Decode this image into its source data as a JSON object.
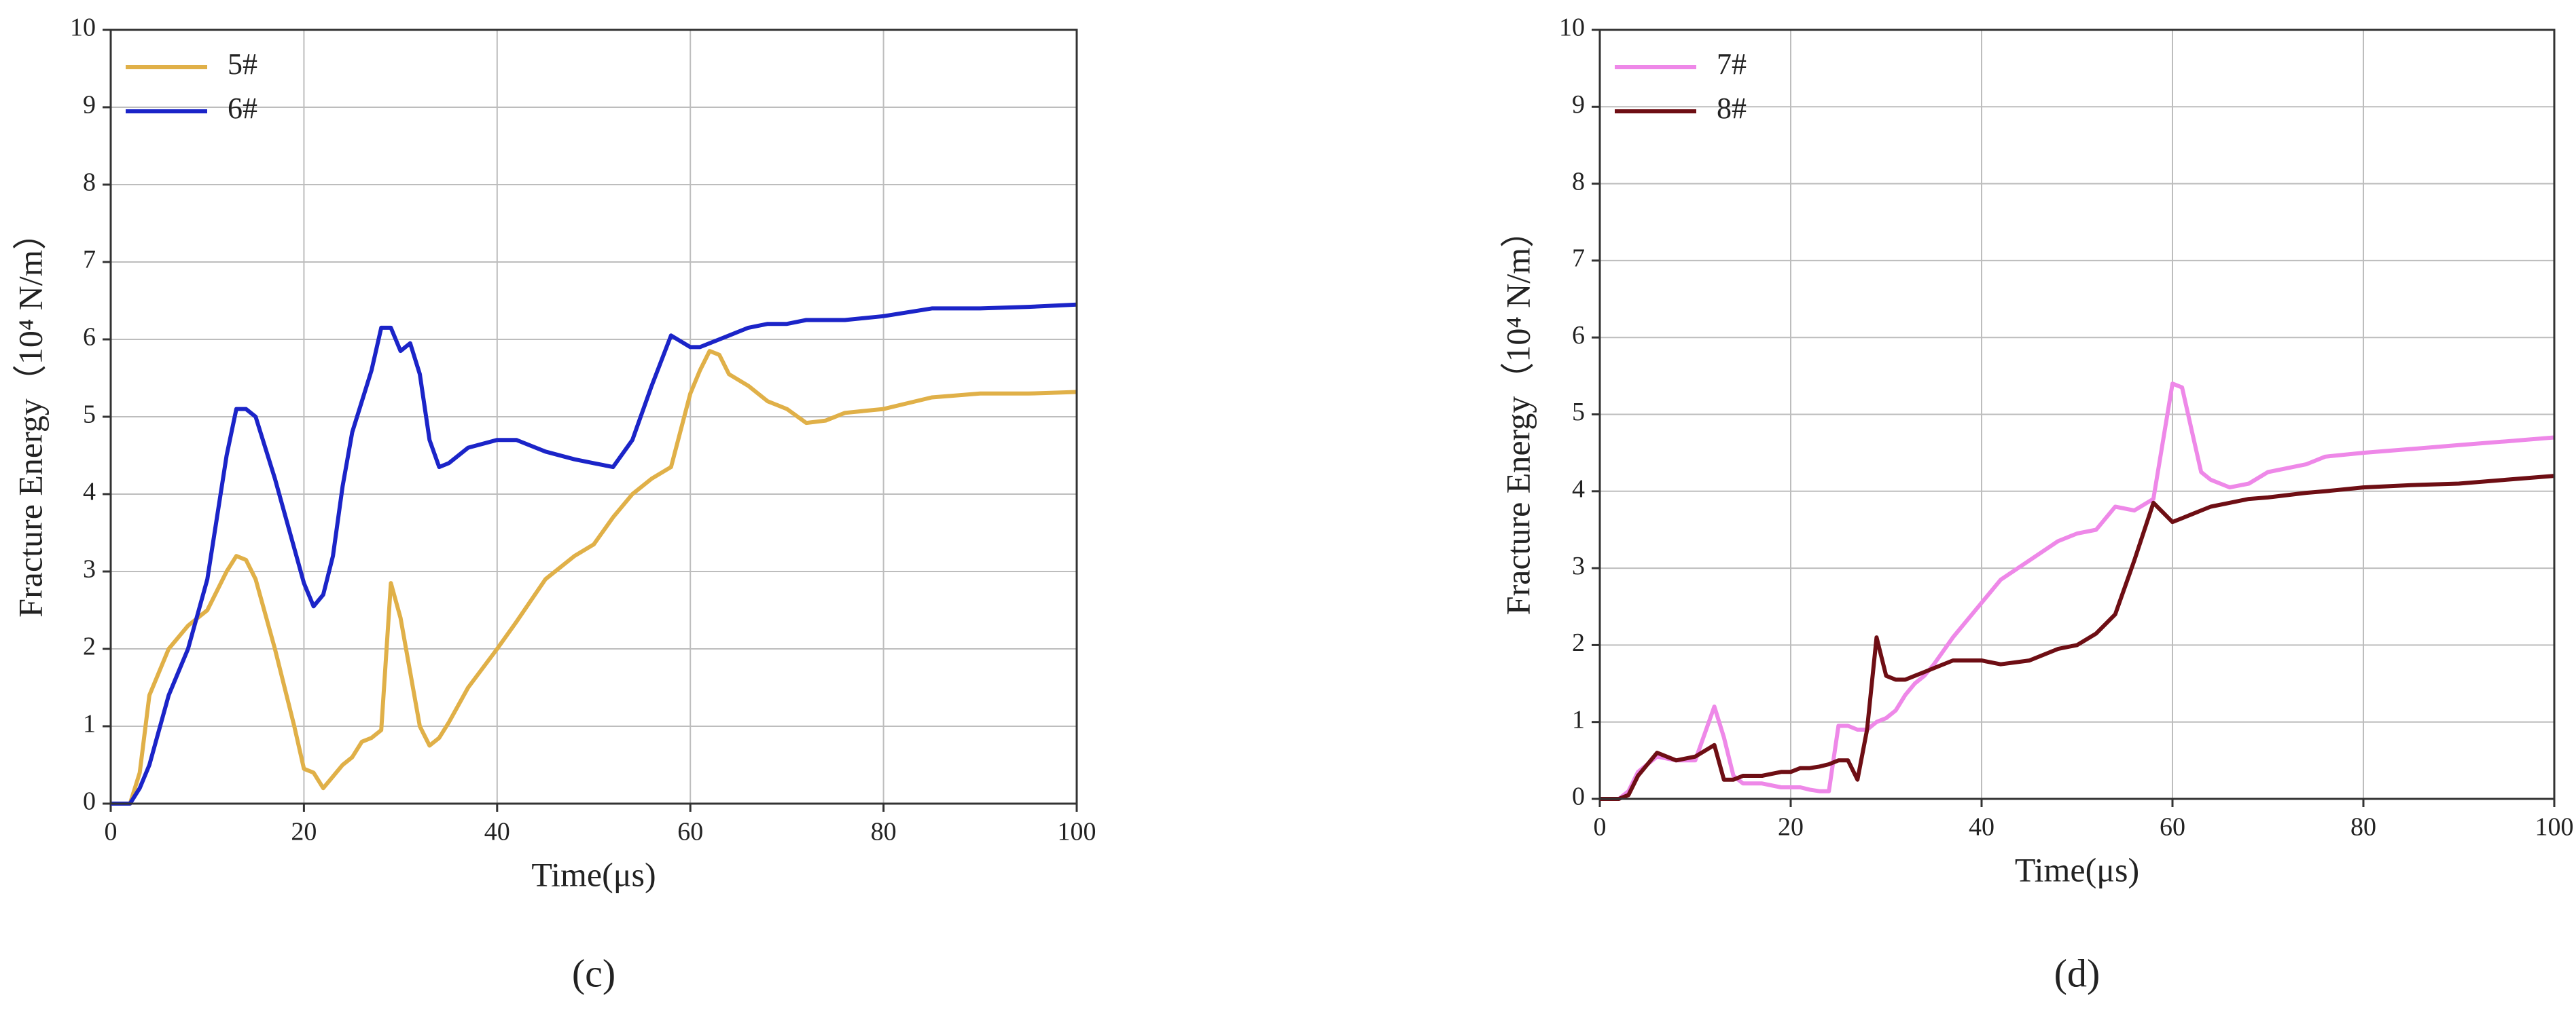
{
  "chart_data": [
    {
      "type": "line",
      "xlabel": "Time(μs)",
      "ylabel": "Fracture Energy（10⁴ N/m）",
      "caption": "(c)",
      "xlim": [
        0,
        100
      ],
      "ylim": [
        0,
        10
      ],
      "xticks": [
        0,
        20,
        40,
        60,
        80,
        100
      ],
      "yticks": [
        0,
        1,
        2,
        3,
        4,
        5,
        6,
        7,
        8,
        9,
        10
      ],
      "grid": true,
      "legend": "top-left",
      "x": [
        0,
        2,
        3,
        4,
        6,
        8,
        10,
        12,
        13,
        14,
        15,
        17,
        19,
        20,
        21,
        22,
        23,
        24,
        25,
        26,
        27,
        28,
        29,
        30,
        31,
        32,
        33,
        34,
        35,
        37,
        40,
        42,
        45,
        48,
        50,
        52,
        54,
        56,
        58,
        60,
        61,
        62,
        63,
        64,
        66,
        68,
        70,
        72,
        74,
        76,
        80,
        85,
        90,
        95,
        100
      ],
      "series": [
        {
          "name": "5#",
          "color": "#e0b048",
          "values": [
            0,
            0,
            0.4,
            1.4,
            2.0,
            2.3,
            2.5,
            3.0,
            3.2,
            3.15,
            2.9,
            2.0,
            1.0,
            0.45,
            0.4,
            0.2,
            0.35,
            0.5,
            0.6,
            0.8,
            0.85,
            0.95,
            2.85,
            2.4,
            1.7,
            1.0,
            0.75,
            0.85,
            1.05,
            1.5,
            2.0,
            2.35,
            2.9,
            3.2,
            3.35,
            3.7,
            4.0,
            4.2,
            4.35,
            5.3,
            5.6,
            5.85,
            5.8,
            5.55,
            5.4,
            5.2,
            5.1,
            4.92,
            4.95,
            5.05,
            5.1,
            5.25,
            5.3,
            5.3,
            5.32
          ]
        },
        {
          "name": "6#",
          "color": "#1b24c8",
          "values": [
            0,
            0,
            0.2,
            0.5,
            1.4,
            2.0,
            2.9,
            4.5,
            5.1,
            5.1,
            5.0,
            4.2,
            3.3,
            2.85,
            2.55,
            2.7,
            3.2,
            4.1,
            4.8,
            5.2,
            5.6,
            6.15,
            6.15,
            5.85,
            5.95,
            5.55,
            4.7,
            4.35,
            4.4,
            4.6,
            4.7,
            4.7,
            4.55,
            4.45,
            4.4,
            4.35,
            4.7,
            5.4,
            6.05,
            5.9,
            5.9,
            5.95,
            6.0,
            6.05,
            6.15,
            6.2,
            6.2,
            6.25,
            6.25,
            6.25,
            6.3,
            6.4,
            6.4,
            6.42,
            6.45
          ]
        }
      ]
    },
    {
      "type": "line",
      "xlabel": "Time(μs)",
      "ylabel": "Fracture Energy（10⁴ N/m）",
      "caption": "(d)",
      "xlim": [
        0,
        100
      ],
      "ylim": [
        0,
        10
      ],
      "xticks": [
        0,
        20,
        40,
        60,
        80,
        100
      ],
      "yticks": [
        0,
        1,
        2,
        3,
        4,
        5,
        6,
        7,
        8,
        9,
        10
      ],
      "grid": true,
      "legend": "top-left",
      "x": [
        0,
        2,
        3,
        4,
        6,
        8,
        10,
        12,
        13,
        14,
        15,
        17,
        19,
        20,
        21,
        22,
        23,
        24,
        25,
        26,
        27,
        28,
        29,
        30,
        31,
        32,
        33,
        34,
        35,
        37,
        40,
        42,
        45,
        48,
        50,
        52,
        54,
        56,
        58,
        60,
        61,
        62,
        63,
        64,
        66,
        68,
        70,
        72,
        74,
        76,
        80,
        85,
        90,
        95,
        100
      ],
      "series": [
        {
          "name": "7#",
          "color": "#ee88e8",
          "values": [
            0,
            0,
            0.1,
            0.35,
            0.55,
            0.5,
            0.5,
            1.2,
            0.8,
            0.3,
            0.2,
            0.2,
            0.15,
            0.15,
            0.15,
            0.12,
            0.1,
            0.1,
            0.95,
            0.95,
            0.9,
            0.9,
            1.0,
            1.05,
            1.15,
            1.35,
            1.5,
            1.6,
            1.75,
            2.1,
            2.55,
            2.85,
            3.1,
            3.35,
            3.45,
            3.5,
            3.8,
            3.75,
            3.9,
            5.4,
            5.35,
            4.8,
            4.25,
            4.15,
            4.05,
            4.1,
            4.25,
            4.3,
            4.35,
            4.45,
            4.5,
            4.55,
            4.6,
            4.65,
            4.7
          ]
        },
        {
          "name": "8#",
          "color": "#6e0e14",
          "values": [
            0,
            0,
            0.05,
            0.3,
            0.6,
            0.5,
            0.55,
            0.7,
            0.25,
            0.25,
            0.3,
            0.3,
            0.35,
            0.35,
            0.4,
            0.4,
            0.42,
            0.45,
            0.5,
            0.5,
            0.25,
            0.9,
            2.1,
            1.6,
            1.55,
            1.55,
            1.6,
            1.65,
            1.7,
            1.8,
            1.8,
            1.75,
            1.8,
            1.95,
            2.0,
            2.15,
            2.4,
            3.1,
            3.85,
            3.6,
            3.65,
            3.7,
            3.75,
            3.8,
            3.85,
            3.9,
            3.92,
            3.95,
            3.98,
            4.0,
            4.05,
            4.08,
            4.1,
            4.15,
            4.2
          ]
        }
      ]
    }
  ]
}
